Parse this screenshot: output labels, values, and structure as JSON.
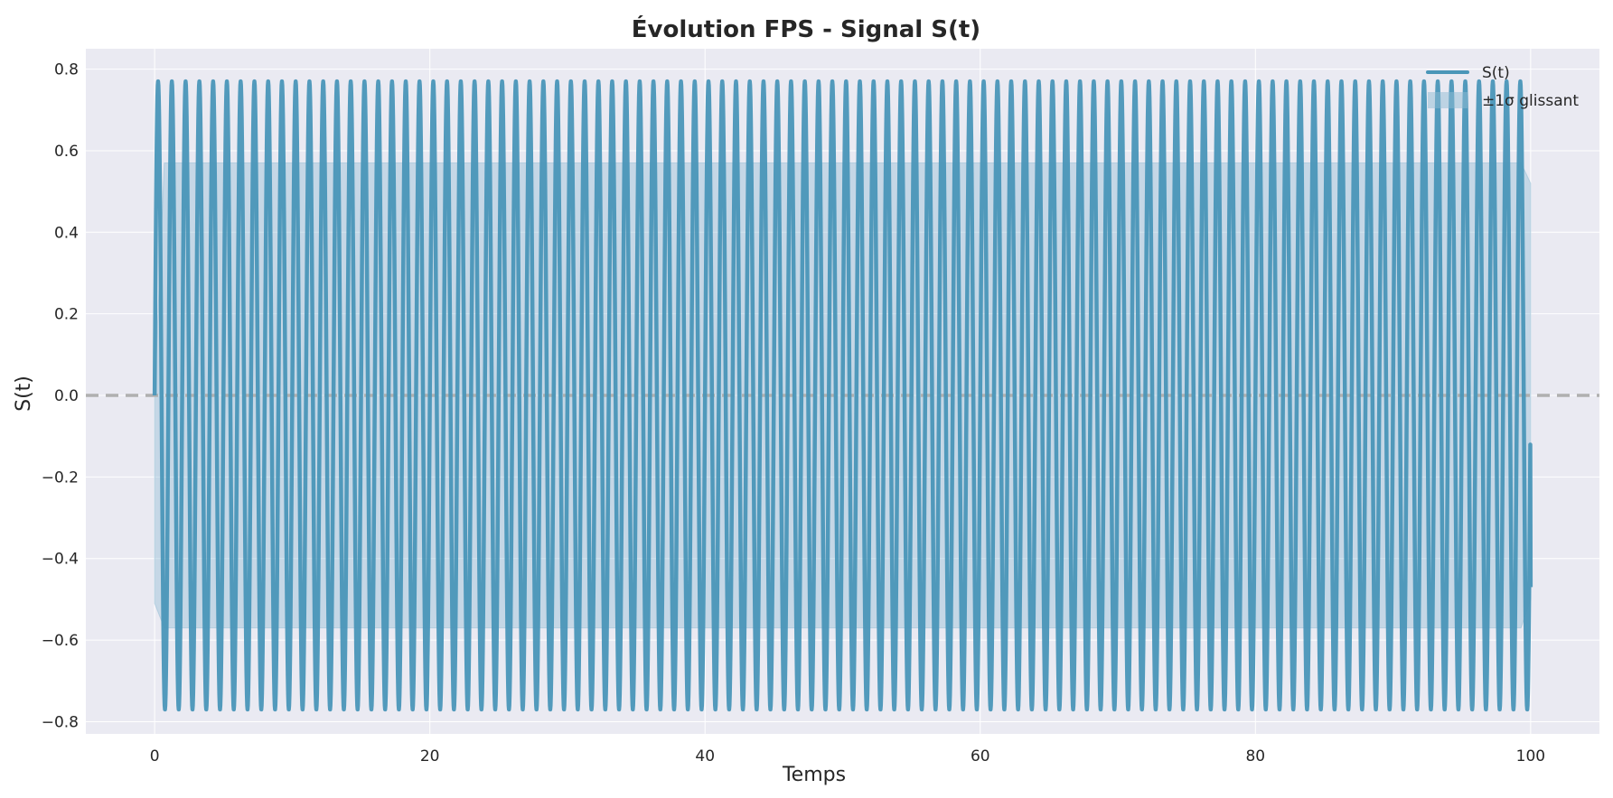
{
  "chart_data": {
    "type": "line",
    "title": "Évolution FPS - Signal S(t)",
    "xlabel": "Temps",
    "ylabel": "S(t)",
    "xlim": [
      -5,
      105
    ],
    "ylim": [
      -0.83,
      0.85
    ],
    "x_ticks": [
      0,
      20,
      40,
      60,
      80,
      100
    ],
    "x_tick_labels": [
      "0",
      "20",
      "40",
      "60",
      "80",
      "100"
    ],
    "y_ticks": [
      -0.8,
      -0.6,
      -0.4,
      -0.2,
      0.0,
      0.2,
      0.4,
      0.6,
      0.8
    ],
    "y_tick_labels": [
      "−0.8",
      "−0.6",
      "−0.4",
      "−0.2",
      "0.0",
      "0.2",
      "0.4",
      "0.6",
      "0.8"
    ],
    "grid": true,
    "legend_position": "top-right",
    "reference_line": {
      "y": 0.0,
      "style": "dashed",
      "color": "#b0b0b0"
    },
    "series": [
      {
        "name": "S(t)",
        "kind": "line",
        "color": "#4a96b8",
        "x_start": 0,
        "x_end": 100,
        "period": 1.0,
        "amplitude": 0.77,
        "start_value": 0.0,
        "end_value": -0.47
      },
      {
        "name": "±1σ glissant",
        "kind": "band",
        "color": "#8fbcd4",
        "x_start": 0,
        "x_end": 100,
        "lower": -0.57,
        "upper": 0.57
      }
    ]
  }
}
